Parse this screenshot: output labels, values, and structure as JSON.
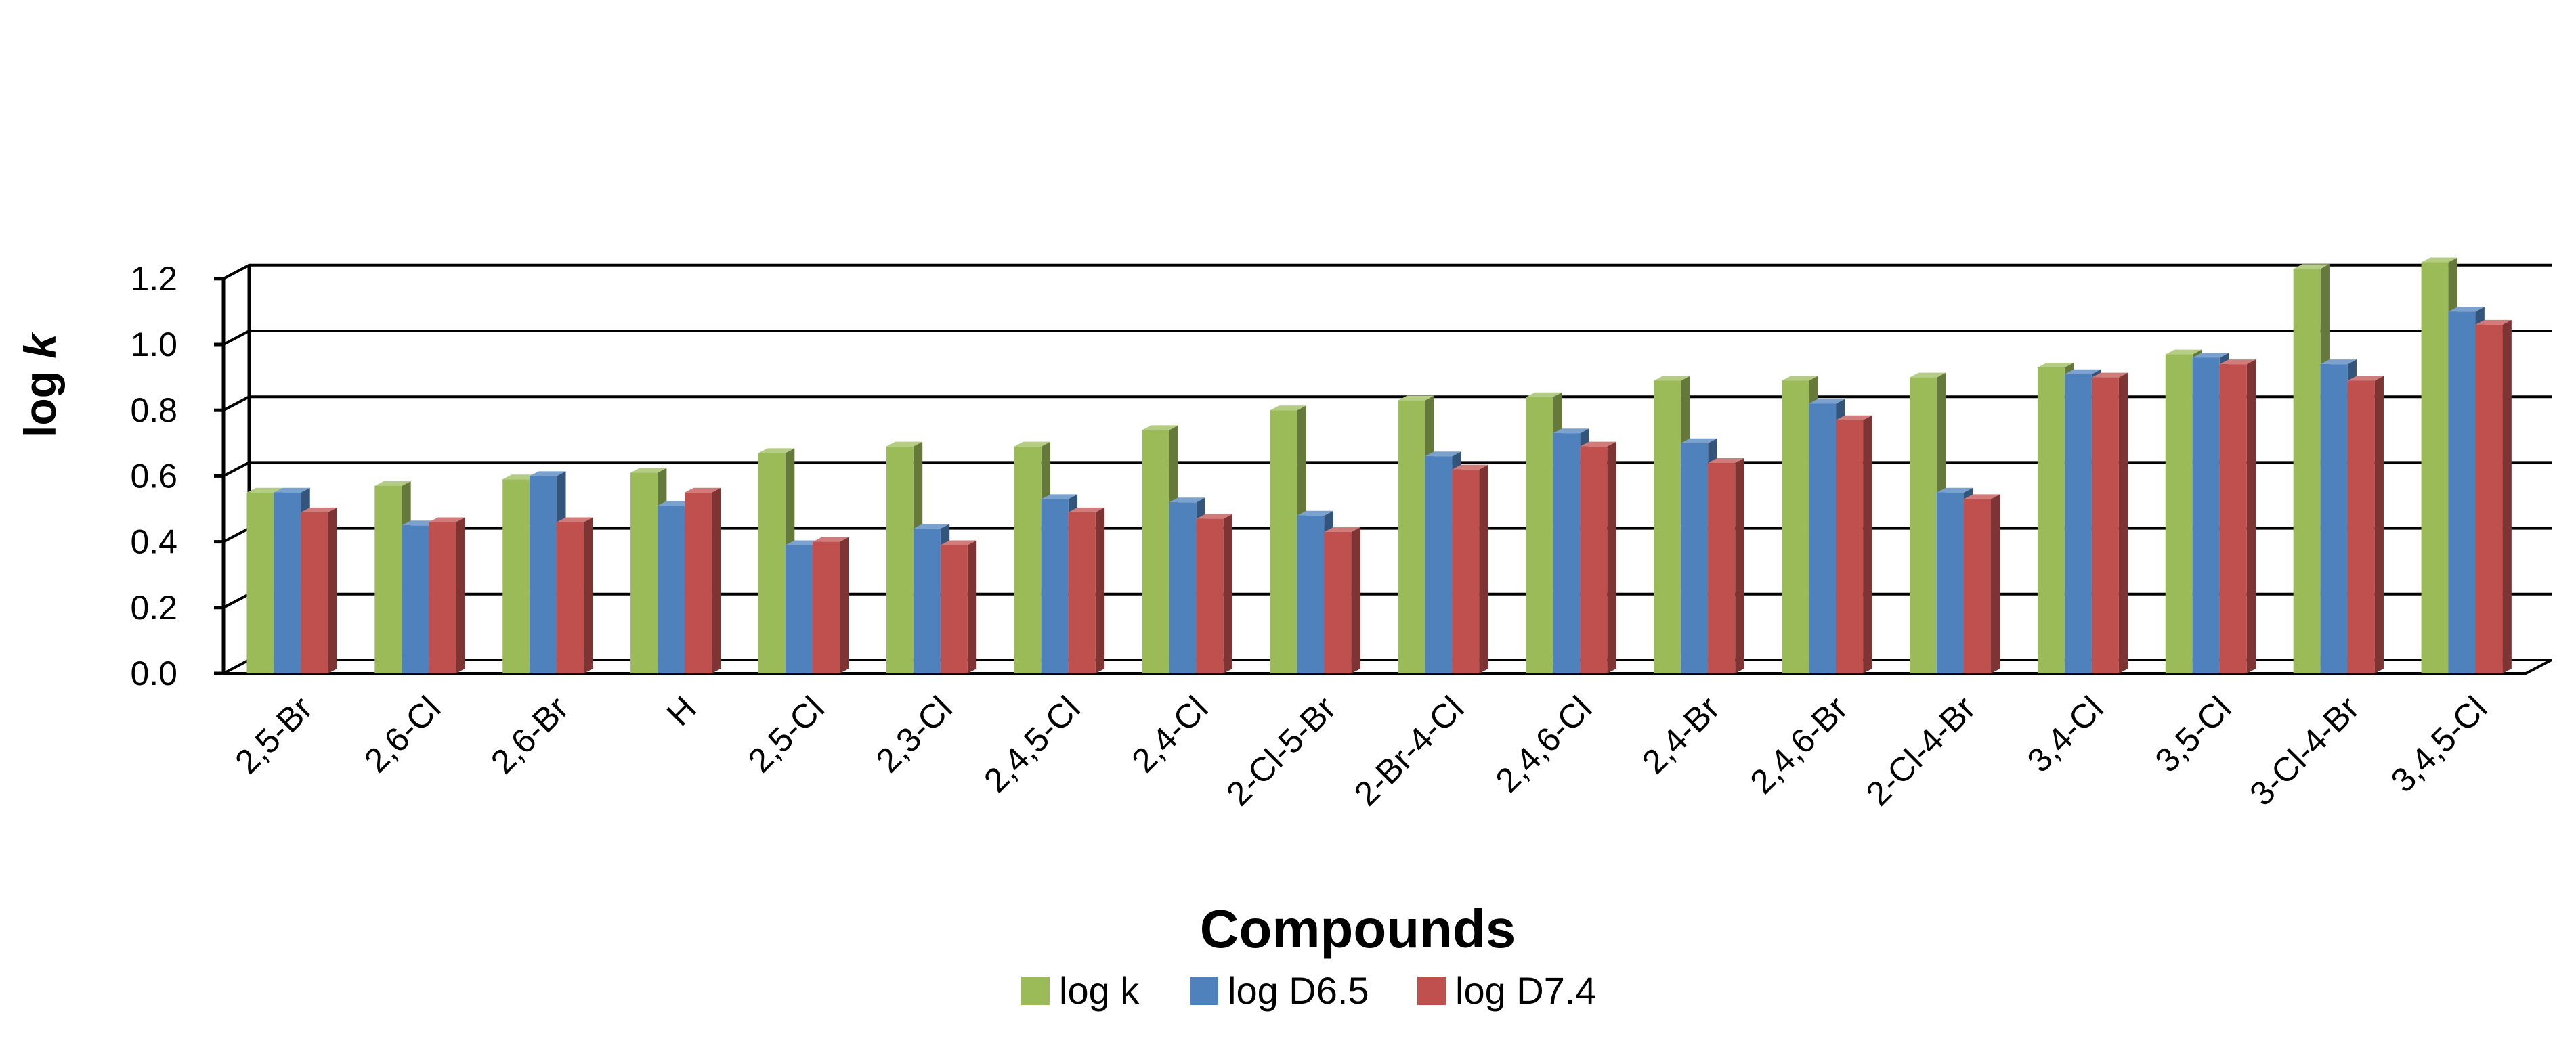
{
  "chart_data": {
    "type": "bar",
    "style": "3d-clustered-column",
    "title": "",
    "xlabel": "Compounds",
    "ylabel_prefix": "log ",
    "ylabel_italic": "k",
    "ylim": [
      0,
      1.2
    ],
    "yticks": [
      "0.0",
      "0.2",
      "0.4",
      "0.6",
      "0.8",
      "1.0",
      "1.2"
    ],
    "grid": true,
    "legend_position": "bottom",
    "categories": [
      "2,5-Br",
      "2,6-Cl",
      "2,6-Br",
      "H",
      "2,5-Cl",
      "2,3-Cl",
      "2,4,5-Cl",
      "2,4-Cl",
      "2-Cl-5-Br",
      "2-Br-4-Cl",
      "2,4,6-Cl",
      "2,4-Br",
      "2,4,6-Br",
      "2-Cl-4-Br",
      "3,4-Cl",
      "3,5-Cl",
      "3-Cl-4-Br",
      "3,4,5-Cl"
    ],
    "series": [
      {
        "name": "log k",
        "color": "#9BBB59",
        "values": [
          0.55,
          0.57,
          0.59,
          0.61,
          0.67,
          0.69,
          0.69,
          0.74,
          0.8,
          0.83,
          0.84,
          0.89,
          0.89,
          0.9,
          0.93,
          0.97,
          1.23,
          1.25
        ]
      },
      {
        "name": "log D6.5",
        "color": "#4F81BD",
        "values": [
          0.55,
          0.45,
          0.6,
          0.51,
          0.39,
          0.44,
          0.53,
          0.52,
          0.48,
          0.66,
          0.73,
          0.7,
          0.82,
          0.55,
          0.91,
          0.96,
          0.94,
          1.1
        ]
      },
      {
        "name": "log D7.4",
        "color": "#C0504D",
        "values": [
          0.49,
          0.46,
          0.46,
          0.55,
          0.4,
          0.39,
          0.49,
          0.47,
          0.43,
          0.62,
          0.69,
          0.64,
          0.77,
          0.53,
          0.9,
          0.94,
          0.89,
          1.06
        ]
      }
    ]
  }
}
